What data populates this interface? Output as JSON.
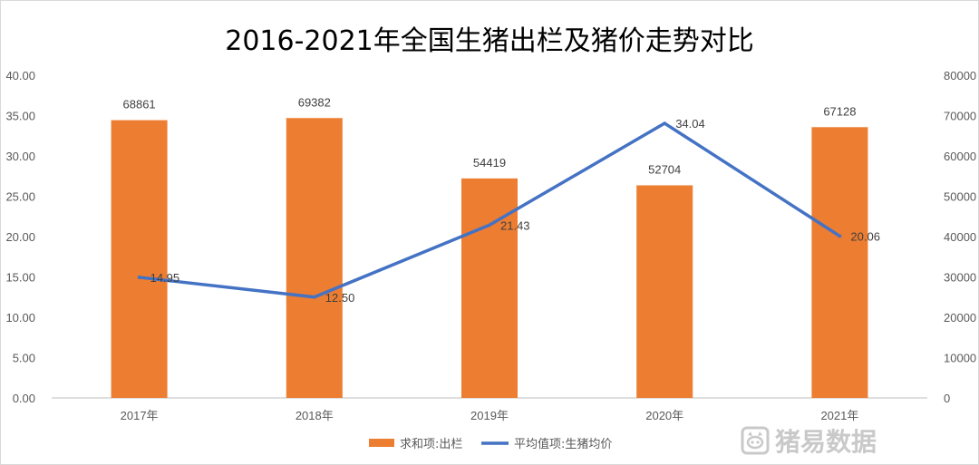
{
  "chart_data": {
    "type": "bar",
    "title": "2016-2021年全国生猪出栏及猪价走势对比",
    "categories": [
      "2017年",
      "2018年",
      "2019年",
      "2020年",
      "2021年"
    ],
    "series": [
      {
        "name": "求和项:出栏",
        "type": "bar",
        "axis": "right",
        "color": "#ED7D31",
        "values": [
          68861,
          69382,
          54419,
          52704,
          67128
        ]
      },
      {
        "name": "平均值项:生猪均价",
        "type": "line",
        "axis": "left",
        "color": "#4472C4",
        "values": [
          14.95,
          12.5,
          21.43,
          34.04,
          20.06
        ]
      }
    ],
    "y_left": {
      "ylim": [
        0,
        40
      ],
      "ticks": [
        "0.00",
        "5.00",
        "10.00",
        "15.00",
        "20.00",
        "25.00",
        "30.00",
        "35.00",
        "40.00"
      ]
    },
    "y_right": {
      "ylim": [
        0,
        80000
      ],
      "ticks": [
        "0",
        "10000",
        "20000",
        "30000",
        "40000",
        "50000",
        "60000",
        "70000",
        "80000"
      ]
    },
    "bar_labels": [
      "68861",
      "69382",
      "54419",
      "52704",
      "67128"
    ],
    "line_labels": [
      "14.95",
      "12.50",
      "21.43",
      "34.04",
      "20.06"
    ],
    "grid": false,
    "legend_position": "bottom"
  },
  "watermark": {
    "text": "猪易数据",
    "icon": "pig-logo-icon",
    "color": "#c9c9c9"
  }
}
